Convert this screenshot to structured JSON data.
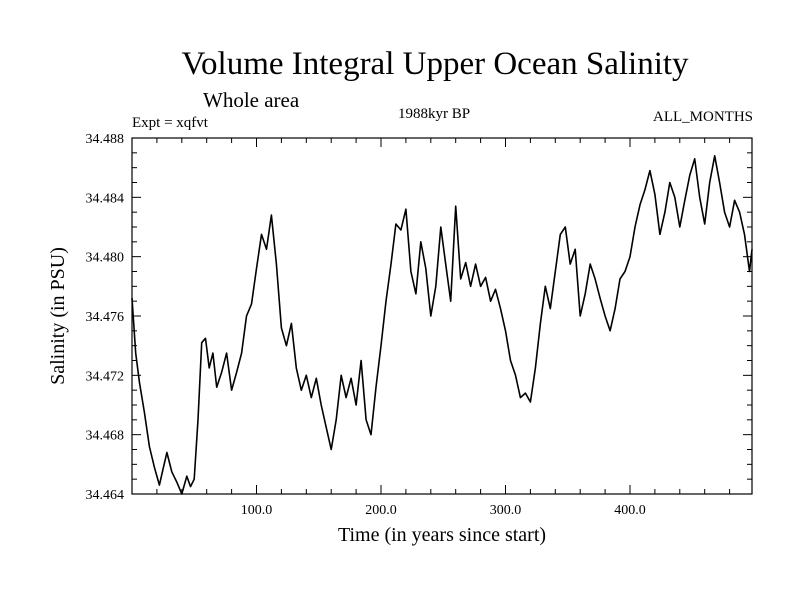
{
  "chart_data": {
    "type": "line",
    "title": "Volume Integral Upper Ocean Salinity",
    "subtitle": "Whole area",
    "annotations": {
      "experiment": "Expt = xqfvt",
      "period": "1988kyr BP",
      "months": "ALL_MONTHS"
    },
    "xlabel": "Time (in years since start)",
    "ylabel": "Salinity (in PSU)",
    "xlim": [
      0,
      498
    ],
    "ylim": [
      34.464,
      34.488
    ],
    "xticks": [
      100,
      200,
      300,
      400
    ],
    "xtick_labels": [
      "100.0",
      "200.0",
      "300.0",
      "400.0"
    ],
    "yticks": [
      34.464,
      34.468,
      34.472,
      34.476,
      34.48,
      34.484,
      34.488
    ],
    "ytick_labels": [
      "34.464",
      "34.468",
      "34.472",
      "34.476",
      "34.480",
      "34.484",
      "34.488"
    ],
    "grid": false,
    "series": [
      {
        "name": "Salinity",
        "x": [
          0,
          3,
          6,
          10,
          14,
          18,
          22,
          25,
          28,
          32,
          36,
          40,
          44,
          47,
          50,
          53,
          56,
          59,
          62,
          65,
          68,
          72,
          76,
          80,
          84,
          88,
          92,
          96,
          100,
          104,
          108,
          112,
          116,
          120,
          124,
          128,
          132,
          136,
          140,
          144,
          148,
          152,
          156,
          160,
          164,
          168,
          172,
          176,
          180,
          184,
          188,
          192,
          196,
          200,
          204,
          208,
          212,
          216,
          220,
          224,
          228,
          232,
          236,
          240,
          244,
          248,
          252,
          256,
          260,
          264,
          268,
          272,
          276,
          280,
          284,
          288,
          292,
          296,
          300,
          304,
          308,
          312,
          316,
          320,
          324,
          328,
          332,
          336,
          340,
          344,
          348,
          352,
          356,
          360,
          364,
          368,
          372,
          376,
          380,
          384,
          388,
          392,
          396,
          400,
          404,
          408,
          412,
          416,
          420,
          424,
          428,
          432,
          436,
          440,
          444,
          448,
          452,
          456,
          460,
          464,
          468,
          472,
          476,
          480,
          484,
          488,
          492,
          496,
          498
        ],
        "values": [
          34.4772,
          34.4735,
          34.4715,
          34.4695,
          34.4672,
          34.4658,
          34.4646,
          34.4657,
          34.4668,
          34.4655,
          34.4648,
          34.464,
          34.4652,
          34.4645,
          34.465,
          34.469,
          34.4742,
          34.4745,
          34.4725,
          34.4735,
          34.4712,
          34.4722,
          34.4735,
          34.471,
          34.4722,
          34.4735,
          34.476,
          34.4768,
          34.4792,
          34.4815,
          34.4805,
          34.4828,
          34.4795,
          34.4752,
          34.474,
          34.4755,
          34.4725,
          34.471,
          34.472,
          34.4705,
          34.4718,
          34.47,
          34.4685,
          34.467,
          34.469,
          34.472,
          34.4705,
          34.4718,
          34.47,
          34.473,
          34.469,
          34.468,
          34.4712,
          34.474,
          34.477,
          34.4795,
          34.4822,
          34.4818,
          34.4832,
          34.479,
          34.4775,
          34.481,
          34.4792,
          34.476,
          34.478,
          34.482,
          34.4795,
          34.477,
          34.4834,
          34.4785,
          34.4796,
          34.478,
          34.4795,
          34.478,
          34.4786,
          34.477,
          34.4778,
          34.4765,
          34.475,
          34.473,
          34.472,
          34.4705,
          34.4708,
          34.4702,
          34.4725,
          34.4755,
          34.478,
          34.4765,
          34.479,
          34.4815,
          34.482,
          34.4795,
          34.4805,
          34.476,
          34.4775,
          34.4795,
          34.4785,
          34.4772,
          34.476,
          34.475,
          34.4765,
          34.4785,
          34.479,
          34.48,
          34.482,
          34.4835,
          34.4845,
          34.4858,
          34.4842,
          34.4815,
          34.483,
          34.485,
          34.484,
          34.482,
          34.4838,
          34.4855,
          34.4866,
          34.484,
          34.4822,
          34.485,
          34.4868,
          34.485,
          34.483,
          34.482,
          34.4838,
          34.483,
          34.4815,
          34.479,
          34.4805
        ]
      }
    ]
  }
}
